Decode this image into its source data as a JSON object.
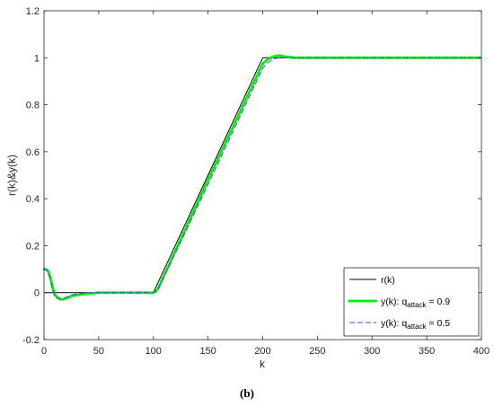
{
  "chart_data": {
    "type": "line",
    "xlabel": "k",
    "ylabel": "r(k)&y(k)",
    "panel_label": "(b)",
    "xlim": [
      0,
      400
    ],
    "ylim": [
      -0.2,
      1.2
    ],
    "xticks": [
      0,
      50,
      100,
      150,
      200,
      250,
      300,
      350,
      400
    ],
    "yticks": [
      -0.2,
      0,
      0.2,
      0.4,
      0.6,
      0.8,
      1,
      1.2
    ],
    "grid": false,
    "legend_position": "bottom-right",
    "series": [
      {
        "name": "r(k)",
        "color": "#000000",
        "style": "solid",
        "x": [
          0,
          100,
          200,
          400
        ],
        "y": [
          0,
          0,
          1,
          1
        ]
      },
      {
        "name": "y(k): q_attack = 0.9",
        "name_base": "y(k): q",
        "name_sub": "attack",
        "name_tail": " = 0.9",
        "color": "#00ee00",
        "style": "dotted",
        "x": [
          0,
          2,
          4,
          6,
          8,
          10,
          13,
          16,
          20,
          25,
          30,
          40,
          50,
          70,
          90,
          100,
          102,
          104,
          150,
          200,
          205,
          210,
          215,
          220,
          230,
          250,
          300,
          400
        ],
        "y": [
          0.1,
          0.1,
          0.09,
          0.06,
          0.02,
          -0.01,
          -0.025,
          -0.03,
          -0.025,
          -0.015,
          -0.01,
          -0.005,
          0,
          0,
          0,
          0,
          0.005,
          0.015,
          0.48,
          0.975,
          0.995,
          1.005,
          1.01,
          1.005,
          1.0,
          1.0,
          1.0,
          1.0
        ]
      },
      {
        "name": "y(k): q_attack = 0.5",
        "name_base": "y(k): q",
        "name_sub": "attack",
        "name_tail": " = 0.5",
        "color": "#4444ff",
        "style": "dashed",
        "x": [
          0,
          2,
          4,
          6,
          8,
          10,
          13,
          16,
          20,
          25,
          30,
          40,
          50,
          70,
          90,
          100,
          102,
          104,
          150,
          200,
          205,
          210,
          215,
          220,
          230,
          250,
          300,
          400
        ],
        "y": [
          0.1,
          0.1,
          0.085,
          0.05,
          0.01,
          -0.015,
          -0.025,
          -0.025,
          -0.02,
          -0.01,
          -0.005,
          0,
          0,
          0,
          0,
          0,
          0.003,
          0.01,
          0.46,
          0.955,
          0.98,
          0.995,
          1.0,
          1.0,
          1.0,
          1.0,
          1.0,
          1.0
        ]
      }
    ]
  }
}
